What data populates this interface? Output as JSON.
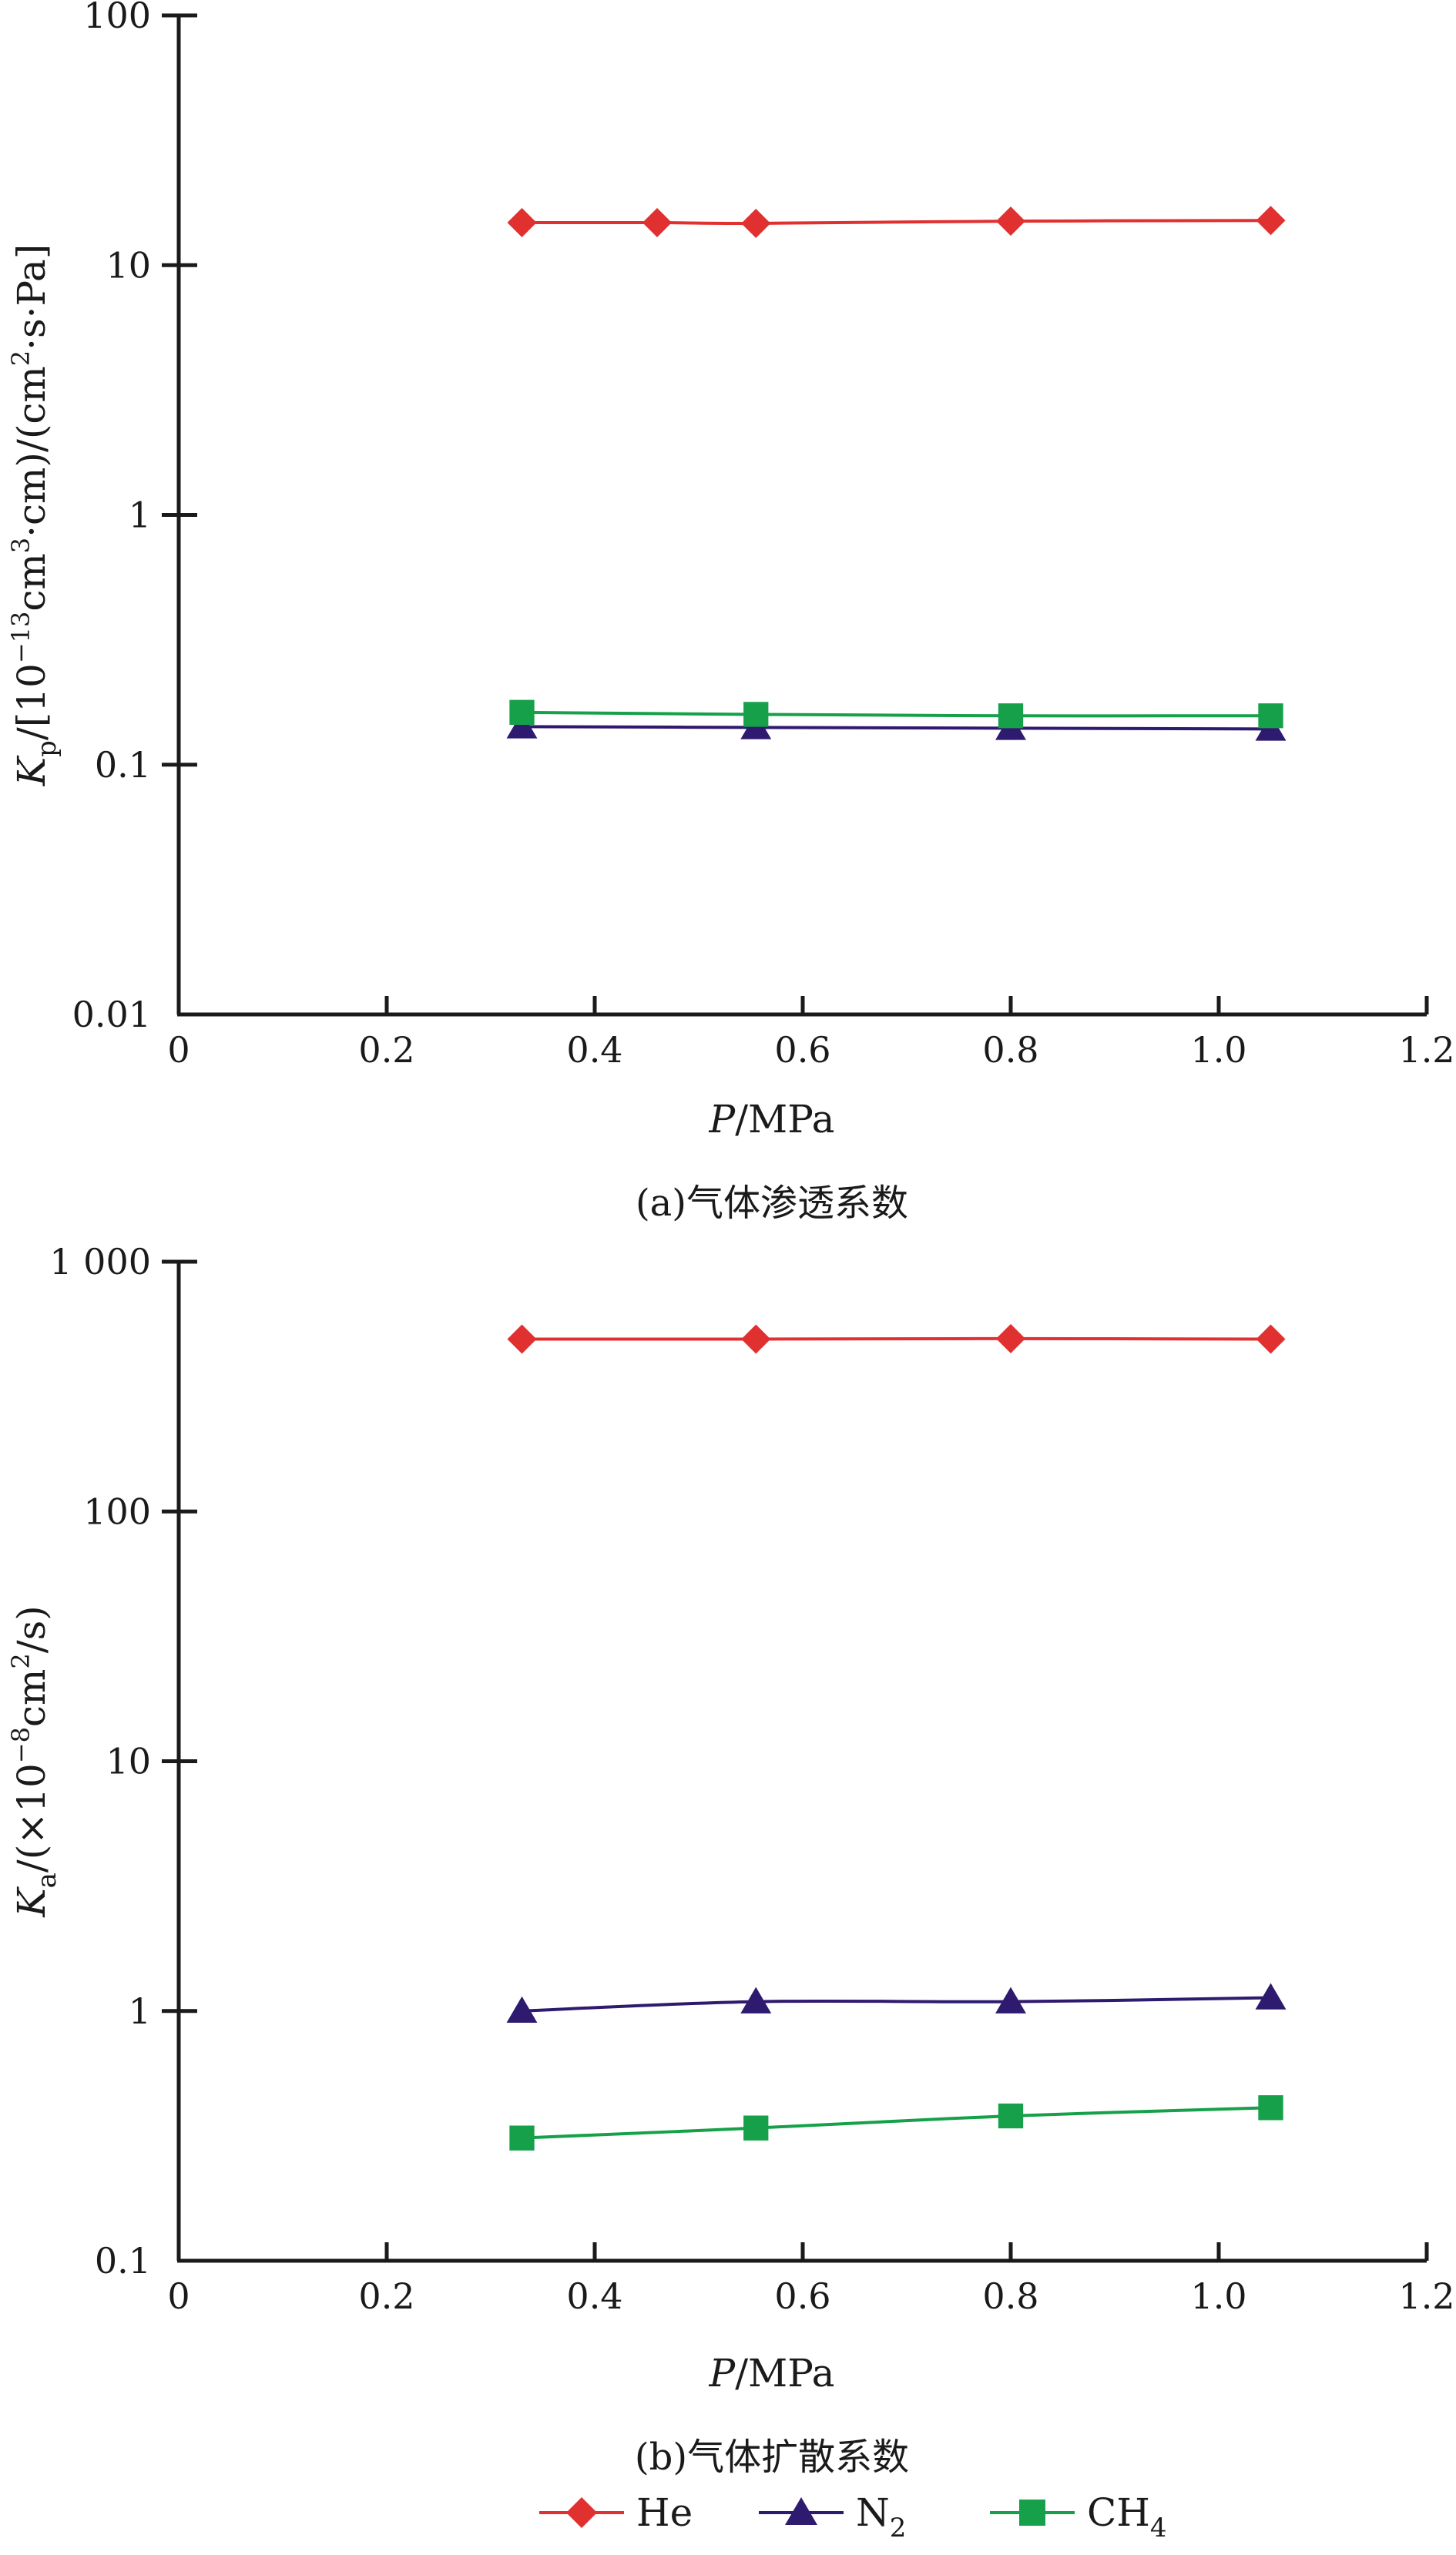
{
  "chart_data": [
    {
      "type": "line",
      "caption": "(a)气体渗透系数",
      "ylabel_main": "K",
      "ylabel_sub": "p",
      "ylabel_rest": "/[10",
      "ylabel_exp": "−13",
      "ylabel_rest2": "cm",
      "ylabel_exp2": "3",
      "ylabel_rest3": "·cm)/(cm",
      "ylabel_exp3": "2",
      "ylabel_rest4": "·s·Pa]",
      "xlabel_main": "P",
      "xlabel_rest": "/MPa",
      "y_scale": "log",
      "xlim": [
        0,
        1.2
      ],
      "ylim": [
        0.01,
        100
      ],
      "x_ticks": [
        "0",
        "0.2",
        "0.4",
        "0.6",
        "0.8",
        "1.0",
        "1.2"
      ],
      "y_ticks": [
        "0.01",
        "0.1",
        "1",
        "10",
        "100"
      ],
      "series": [
        {
          "name": "He",
          "color": "#e03030",
          "marker": "diamond",
          "x": [
            0.33,
            0.46,
            0.555,
            0.8,
            1.05
          ],
          "y": [
            14.8,
            14.8,
            14.7,
            15.0,
            15.1
          ]
        },
        {
          "name": "N2",
          "color": "#2e1a6e",
          "marker": "triangle",
          "x": [
            0.33,
            0.555,
            0.8,
            1.05
          ],
          "y": [
            0.142,
            0.141,
            0.14,
            0.139
          ]
        },
        {
          "name": "CH4",
          "color": "#16a04a",
          "marker": "square",
          "x": [
            0.33,
            0.555,
            0.8,
            1.05
          ],
          "y": [
            0.162,
            0.159,
            0.157,
            0.157
          ]
        }
      ]
    },
    {
      "type": "line",
      "caption": "(b)气体扩散系数",
      "ylabel_main": "K",
      "ylabel_sub": "a",
      "ylabel_rest": "/(×10",
      "ylabel_exp": "−8",
      "ylabel_rest2": "cm",
      "ylabel_exp2": "2",
      "ylabel_rest3": "/s)",
      "ylabel_exp3": "",
      "ylabel_rest4": "",
      "xlabel_main": "P",
      "xlabel_rest": "/MPa",
      "y_scale": "log",
      "xlim": [
        0,
        1.2
      ],
      "ylim": [
        0.1,
        1000
      ],
      "x_ticks": [
        "0",
        "0.2",
        "0.4",
        "0.6",
        "0.8",
        "1.0",
        "1.2"
      ],
      "y_ticks": [
        "0.1",
        "1",
        "10",
        "100",
        "1 000"
      ],
      "series": [
        {
          "name": "He",
          "color": "#e03030",
          "marker": "diamond",
          "x": [
            0.33,
            0.555,
            0.8,
            1.05
          ],
          "y": [
            490,
            490,
            492,
            490
          ]
        },
        {
          "name": "N2",
          "color": "#2e1a6e",
          "marker": "triangle",
          "x": [
            0.33,
            0.555,
            0.8,
            1.05
          ],
          "y": [
            1.0,
            1.09,
            1.09,
            1.13
          ]
        },
        {
          "name": "CH4",
          "color": "#16a04a",
          "marker": "square",
          "x": [
            0.33,
            0.555,
            0.8,
            1.05
          ],
          "y": [
            0.31,
            0.34,
            0.38,
            0.41
          ]
        }
      ]
    }
  ],
  "legend": {
    "placement": "bottom-center",
    "items": [
      {
        "label": "He",
        "sub": "",
        "color": "#e03030",
        "marker": "diamond"
      },
      {
        "label": "N",
        "sub": "2",
        "color": "#2e1a6e",
        "marker": "triangle"
      },
      {
        "label": "CH",
        "sub": "4",
        "color": "#16a04a",
        "marker": "square"
      }
    ]
  }
}
